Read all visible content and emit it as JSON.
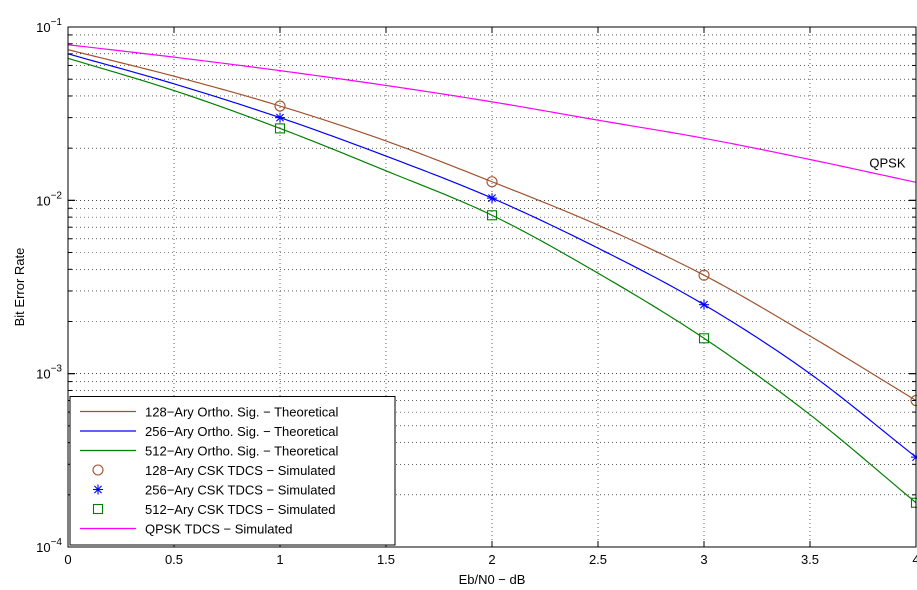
{
  "chart_data": {
    "type": "line",
    "title": "",
    "xlabel": "Eb/N0 − dB",
    "ylabel": "Bit Error Rate",
    "xlim": [
      0,
      4
    ],
    "ylim": [
      0.0001,
      0.1
    ],
    "yscale": "log",
    "grid": true,
    "legend_position": "bottom-left",
    "x_ticks": [
      0,
      0.5,
      1,
      1.5,
      2,
      2.5,
      3,
      3.5,
      4
    ],
    "x_tick_labels": [
      "0",
      "0.5",
      "1",
      "1.5",
      "2",
      "2.5",
      "3",
      "3.5",
      "4"
    ],
    "y_ticks": [
      0.0001,
      0.001,
      0.01,
      0.1
    ],
    "y_tick_labels": [
      {
        "base": "10",
        "exp": "−4"
      },
      {
        "base": "10",
        "exp": "−3"
      },
      {
        "base": "10",
        "exp": "−2"
      },
      {
        "base": "10",
        "exp": "−1"
      }
    ],
    "series": [
      {
        "name": "128−Ary Ortho. Sig. − Theoretical",
        "kind": "line",
        "color": "#A0522D",
        "x": [
          0,
          0.5,
          1,
          1.5,
          2,
          2.5,
          3,
          3.5,
          4
        ],
        "y": [
          0.074,
          0.052,
          0.035,
          0.022,
          0.0128,
          0.0072,
          0.0037,
          0.00165,
          0.0007
        ]
      },
      {
        "name": "256−Ary Ortho. Sig. − Theoretical",
        "kind": "line",
        "color": "#0000FF",
        "x": [
          0,
          0.5,
          1,
          1.5,
          2,
          2.5,
          3,
          3.5,
          4
        ],
        "y": [
          0.07,
          0.047,
          0.03,
          0.018,
          0.0103,
          0.0053,
          0.0025,
          0.001,
          0.00033
        ]
      },
      {
        "name": "512−Ary Ortho. Sig. − Theoretical",
        "kind": "line",
        "color": "#008000",
        "x": [
          0,
          0.5,
          1,
          1.5,
          2,
          2.5,
          3,
          3.5,
          4
        ],
        "y": [
          0.066,
          0.043,
          0.026,
          0.0148,
          0.0082,
          0.0038,
          0.0016,
          0.00058,
          0.00018
        ]
      },
      {
        "name": "128−Ary CSK TDCS − Simulated",
        "kind": "marker",
        "marker": "circle",
        "color": "#A0522D",
        "x": [
          1,
          2,
          3,
          4
        ],
        "y": [
          0.035,
          0.0128,
          0.0037,
          0.0007
        ]
      },
      {
        "name": "256−Ary CSK TDCS − Simulated",
        "kind": "marker",
        "marker": "star",
        "color": "#0000FF",
        "x": [
          1,
          2,
          3,
          4
        ],
        "y": [
          0.03,
          0.0103,
          0.0025,
          0.00033
        ]
      },
      {
        "name": "512−Ary CSK TDCS − Simulated",
        "kind": "marker",
        "marker": "square",
        "color": "#008000",
        "x": [
          1,
          2,
          3,
          4
        ],
        "y": [
          0.026,
          0.0082,
          0.0016,
          0.00018
        ]
      },
      {
        "name": "QPSK TDCS − Simulated",
        "kind": "line",
        "color": "#FF00FF",
        "x": [
          0,
          0.5,
          1,
          1.5,
          2,
          2.5,
          3,
          3.5,
          4
        ],
        "y": [
          0.079,
          0.067,
          0.056,
          0.046,
          0.037,
          0.029,
          0.0228,
          0.0172,
          0.0127
        ]
      }
    ],
    "annotations": [
      {
        "text": "QPSK",
        "x": 3.78,
        "y": 0.0155
      }
    ]
  }
}
